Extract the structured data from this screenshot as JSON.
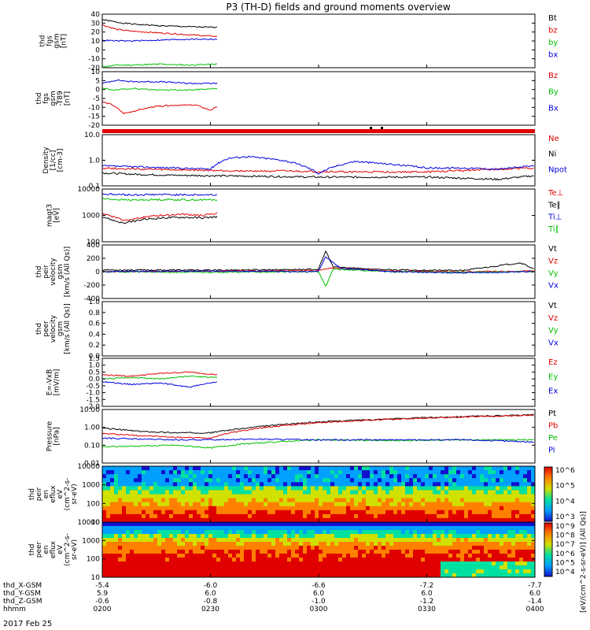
{
  "figure": {
    "title": "P3 (TH-D) fields and ground moments overview",
    "date": "2017 Feb 25",
    "colorbar_label": "[eV/(cm^2-s-sr-eV)]  (All Qs)]"
  },
  "colors": {
    "black": "#000000",
    "red": "#e00000",
    "green": "#00c000",
    "blue": "#0000dd"
  },
  "x_axis": {
    "rows": [
      {
        "name": "thd_X-GSM",
        "values": [
          "-5.4",
          "-6.0",
          "-6.6",
          "-7.2",
          "-7.7"
        ]
      },
      {
        "name": "thd_Y-GSM",
        "values": [
          "5.9",
          "6.0",
          "6.0",
          "6.0",
          "6.0"
        ]
      },
      {
        "name": "thd_Z-GSM",
        "values": [
          "-0.6",
          "-0.8",
          "-1.0",
          "-1.2",
          "-1.4"
        ]
      },
      {
        "name": "hhmm",
        "values": [
          "0200",
          "0230",
          "0300",
          "0330",
          "0400"
        ]
      }
    ]
  },
  "chart_data": [
    {
      "type": "line",
      "panel": "fgs_gsm_nT",
      "ylabel": [
        "thd",
        "fgs",
        "gsm",
        "[nT]"
      ],
      "ylim": [
        -20,
        40
      ],
      "yticks": [
        "40",
        "30",
        "20",
        "10",
        "0",
        "-10",
        "-20"
      ],
      "x_minutes": [
        0,
        30,
        60,
        90,
        120
      ],
      "data_extent_minutes": [
        0,
        32
      ],
      "series": [
        {
          "name": "Bt",
          "color": "black",
          "x": [
            0,
            4,
            8,
            16,
            24,
            32
          ],
          "y": [
            34,
            31,
            29,
            27,
            26,
            25
          ]
        },
        {
          "name": "bz",
          "color": "red",
          "x": [
            0,
            4,
            8,
            16,
            24,
            32
          ],
          "y": [
            28,
            23,
            21,
            19,
            17,
            15
          ]
        },
        {
          "name": "by",
          "color": "green",
          "x": [
            0,
            4,
            8,
            16,
            24,
            32
          ],
          "y": [
            -19,
            -17,
            -17,
            -16,
            -17,
            -16
          ]
        },
        {
          "name": "bx",
          "color": "blue",
          "x": [
            0,
            4,
            8,
            16,
            24,
            32
          ],
          "y": [
            11,
            10,
            10,
            11,
            12,
            12
          ]
        }
      ]
    },
    {
      "type": "line",
      "panel": "fgs_gsm_dB",
      "ylabel": [
        "thd",
        "fgs",
        "gsm",
        "-T89",
        "[nT]"
      ],
      "ylim": [
        -22,
        10
      ],
      "yticks": [
        "10",
        "5",
        "0",
        "-5",
        "-10",
        "-15",
        "-20"
      ],
      "data_extent_minutes": [
        0,
        32
      ],
      "series": [
        {
          "name": "Bz",
          "color": "red",
          "x": [
            0,
            3,
            6,
            10,
            14,
            20,
            26,
            30,
            32
          ],
          "y": [
            -8,
            -10,
            -15,
            -13,
            -11,
            -10,
            -10,
            -13,
            -11
          ]
        },
        {
          "name": "By",
          "color": "green",
          "x": [
            0,
            4,
            8,
            16,
            24,
            32
          ],
          "y": [
            0,
            -1,
            0,
            -1,
            -1,
            0
          ]
        },
        {
          "name": "Bx",
          "color": "blue",
          "x": [
            0,
            4,
            8,
            16,
            24,
            32
          ],
          "y": [
            3,
            5,
            4,
            4,
            3,
            3
          ]
        }
      ]
    },
    {
      "type": "line",
      "panel": "density",
      "yscale": "log",
      "ylabel": [
        "Density",
        "[1/cc]",
        "[cm-3]"
      ],
      "ylim": [
        0.1,
        10
      ],
      "yticks": [
        "10.0",
        "1.0",
        "0.1"
      ],
      "series": [
        {
          "name": "Ne",
          "color": "red",
          "x": [
            0,
            10,
            20,
            30,
            40,
            50,
            60,
            70,
            80,
            90,
            100,
            110,
            120
          ],
          "y": [
            0.5,
            0.45,
            0.42,
            0.4,
            0.38,
            0.38,
            0.36,
            0.35,
            0.35,
            0.35,
            0.4,
            0.45,
            0.5
          ]
        },
        {
          "name": "Ni",
          "color": "black",
          "x": [
            0,
            10,
            20,
            30,
            40,
            50,
            60,
            70,
            80,
            90,
            100,
            110,
            120
          ],
          "y": [
            0.32,
            0.28,
            0.26,
            0.25,
            0.24,
            0.23,
            0.22,
            0.22,
            0.22,
            0.22,
            0.2,
            0.18,
            0.25
          ]
        },
        {
          "name": "Npot",
          "color": "blue",
          "x": [
            0,
            10,
            20,
            30,
            35,
            40,
            50,
            60,
            65,
            70,
            80,
            90,
            100,
            110,
            120
          ],
          "y": [
            0.6,
            0.55,
            0.5,
            0.45,
            1.2,
            1.4,
            1.0,
            0.3,
            0.6,
            0.9,
            0.7,
            0.5,
            0.5,
            0.45,
            0.6
          ]
        }
      ]
    },
    {
      "type": "line",
      "panel": "temperature",
      "yscale": "log",
      "ylabel": [
        "magt3",
        "[eV]"
      ],
      "ylim": [
        100,
        10000
      ],
      "yticks": [
        "10000",
        "1000",
        "100"
      ],
      "data_extent_minutes": [
        0,
        32
      ],
      "series": [
        {
          "name": "Te⊥",
          "color": "red",
          "x": [
            0,
            3,
            6,
            10,
            16,
            22,
            28,
            32
          ],
          "y": [
            1200,
            900,
            650,
            800,
            1000,
            1100,
            1000,
            1200
          ]
        },
        {
          "name": "Te∥",
          "color": "black",
          "x": [
            0,
            3,
            6,
            10,
            16,
            22,
            28,
            32
          ],
          "y": [
            900,
            650,
            500,
            650,
            800,
            850,
            800,
            900
          ]
        },
        {
          "name": "Ti⊥",
          "color": "blue",
          "x": [
            0,
            4,
            8,
            16,
            24,
            32
          ],
          "y": [
            6500,
            6200,
            6000,
            6200,
            6000,
            6000
          ]
        },
        {
          "name": "Ti∥",
          "color": "green",
          "x": [
            0,
            4,
            8,
            16,
            24,
            32
          ],
          "y": [
            4300,
            4000,
            3800,
            4000,
            3900,
            3900
          ]
        }
      ]
    },
    {
      "type": "line",
      "panel": "peir_velocity",
      "ylabel": [
        "thd",
        "peir",
        "velocity",
        "gsm",
        "[km/s (All Qs)]"
      ],
      "ylim": [
        -450,
        450
      ],
      "yticks": [
        "400",
        "200",
        "0",
        "-200",
        "-400"
      ],
      "series": [
        {
          "name": "Vt",
          "color": "black",
          "x": [
            0,
            30,
            60,
            62,
            64,
            70,
            80,
            100,
            116,
            120
          ],
          "y": [
            30,
            25,
            40,
            350,
            80,
            60,
            30,
            20,
            150,
            40
          ]
        },
        {
          "name": "Vz",
          "color": "red",
          "x": [
            0,
            30,
            60,
            64,
            80,
            100,
            120
          ],
          "y": [
            0,
            10,
            20,
            60,
            10,
            0,
            10
          ]
        },
        {
          "name": "Vy",
          "color": "green",
          "x": [
            0,
            30,
            60,
            62,
            64,
            80,
            100,
            120
          ],
          "y": [
            0,
            -10,
            0,
            -250,
            40,
            0,
            -10,
            0
          ]
        },
        {
          "name": "Vx",
          "color": "blue",
          "x": [
            0,
            30,
            60,
            62,
            66,
            80,
            100,
            120
          ],
          "y": [
            0,
            10,
            0,
            250,
            60,
            0,
            -20,
            0
          ]
        }
      ]
    },
    {
      "type": "line",
      "panel": "peer_velocity",
      "ylabel": [
        "thd",
        "peer",
        "velocity",
        "gsm",
        "[km/s (All Qs)]"
      ],
      "ylim": [
        0,
        1.0
      ],
      "yticks": [
        "1.0",
        "0.8",
        "0.6",
        "0.4",
        "0.2",
        "0.0"
      ],
      "series": [
        {
          "name": "Vt",
          "color": "black",
          "x": [],
          "y": []
        },
        {
          "name": "Vz",
          "color": "red",
          "x": [],
          "y": []
        },
        {
          "name": "Vy",
          "color": "green",
          "x": [],
          "y": []
        },
        {
          "name": "Vx",
          "color": "blue",
          "x": [],
          "y": []
        }
      ]
    },
    {
      "type": "line",
      "panel": "efield",
      "ylabel": [
        "E=-VxB",
        "[mV/m]"
      ],
      "ylim": [
        -2.0,
        1.5
      ],
      "yticks": [
        "1.5",
        "1.0",
        "0.5",
        "0.0",
        "-0.5",
        "-1.0",
        "-1.5",
        "-2.0"
      ],
      "data_extent_minutes": [
        0,
        32
      ],
      "series": [
        {
          "name": "Ez",
          "color": "red",
          "x": [
            0,
            8,
            16,
            24,
            32
          ],
          "y": [
            0.3,
            0.2,
            0.4,
            0.5,
            0.3
          ]
        },
        {
          "name": "Ey",
          "color": "green",
          "x": [
            0,
            8,
            16,
            24,
            32
          ],
          "y": [
            0.0,
            0.1,
            0.0,
            0.2,
            0.1
          ]
        },
        {
          "name": "Ex",
          "color": "blue",
          "x": [
            0,
            8,
            16,
            24,
            32
          ],
          "y": [
            -0.2,
            -0.4,
            -0.3,
            -0.6,
            -0.2
          ]
        }
      ]
    },
    {
      "type": "line",
      "panel": "pressure",
      "yscale": "log",
      "ylabel": [
        "Pressure",
        "[nPa]"
      ],
      "ylim": [
        0.01,
        10
      ],
      "yticks": [
        "10.00",
        "1.00",
        "0.10",
        "0.01"
      ],
      "series": [
        {
          "name": "Pt",
          "color": "black",
          "x": [
            0,
            10,
            20,
            30,
            40,
            60,
            80,
            100,
            120
          ],
          "y": [
            0.9,
            0.6,
            0.5,
            0.5,
            0.9,
            2.0,
            3.0,
            4.0,
            5.0
          ]
        },
        {
          "name": "Pb",
          "color": "red",
          "x": [
            0,
            10,
            20,
            30,
            40,
            60,
            80,
            100,
            120
          ],
          "y": [
            0.45,
            0.35,
            0.28,
            0.25,
            0.7,
            1.8,
            2.8,
            3.8,
            4.8
          ]
        },
        {
          "name": "Pe",
          "color": "green",
          "x": [
            0,
            10,
            20,
            30,
            40,
            60,
            80,
            100,
            120
          ],
          "y": [
            0.08,
            0.09,
            0.1,
            0.07,
            0.12,
            0.2,
            0.18,
            0.2,
            0.2
          ]
        },
        {
          "name": "Pi",
          "color": "blue",
          "x": [
            0,
            10,
            20,
            30,
            40,
            60,
            80,
            100,
            120
          ],
          "y": [
            0.25,
            0.22,
            0.2,
            0.2,
            0.22,
            0.2,
            0.2,
            0.2,
            0.15
          ]
        }
      ]
    },
    {
      "type": "heatmap",
      "panel": "peir_eflux",
      "ylabel": [
        "thd",
        "peir",
        "en",
        "eflux",
        "eV",
        "(cm^2-s-",
        "sr-eV)"
      ],
      "yscale": "log",
      "ylim": [
        10,
        20000
      ],
      "yticks": [
        "10000",
        "1000",
        "100",
        "10"
      ],
      "colorbar": {
        "scale": "log",
        "range": [
          1000,
          1000000
        ],
        "ticks": [
          "10^6",
          "10^5",
          "10^4",
          "10^3"
        ]
      }
    },
    {
      "type": "heatmap",
      "panel": "peer_eflux",
      "ylabel": [
        "thd",
        "peer",
        "en",
        "eflux",
        "eV",
        "(cm^2-s-",
        "sr-eV)"
      ],
      "yscale": "log",
      "ylim": [
        7,
        30000
      ],
      "yticks": [
        "10000",
        "1000",
        "100",
        "10"
      ],
      "colorbar": {
        "scale": "log",
        "range": [
          10000,
          1000000000
        ],
        "ticks": [
          "10^9",
          "10^8",
          "10^7",
          "10^6",
          "10^5",
          "10^4"
        ]
      }
    }
  ]
}
